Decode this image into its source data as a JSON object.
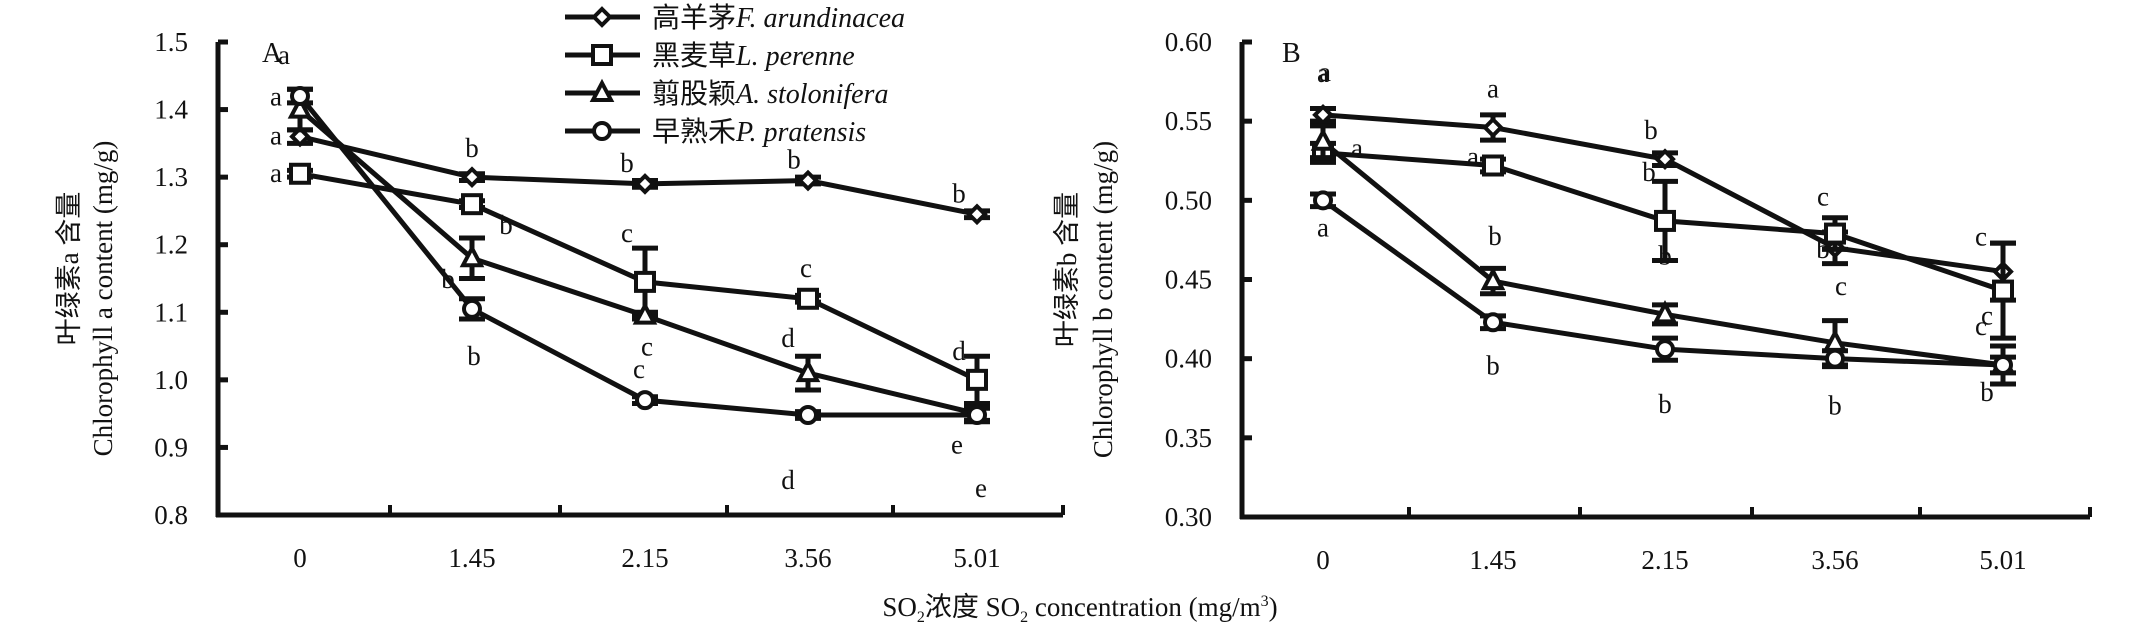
{
  "chart_data": [
    {
      "type": "line",
      "panel_label": "A",
      "title": "",
      "xlabel": "SO₂浓度 SO₂ concentration (mg/m³)",
      "ylabel_cn": "叶绿素a 含量",
      "ylabel_en": "Chlorophyll a content (mg/g)",
      "categories": [
        "0",
        "1.45",
        "2.15",
        "3.56",
        "5.01"
      ],
      "ylim": [
        0.8,
        1.5
      ],
      "yticks": [
        "0.8",
        "0.9",
        "1.0",
        "1.1",
        "1.2",
        "1.3",
        "1.4",
        "1.5"
      ],
      "grid": false,
      "series": [
        {
          "name": "高羊茅 F. arundinacea",
          "marker": "diamond",
          "values": [
            1.36,
            1.3,
            1.29,
            1.295,
            1.245
          ],
          "errors": [
            0.01,
            0.005,
            0.005,
            0.005,
            0.005
          ],
          "letters": [
            "a",
            "b",
            "b",
            "b",
            "b"
          ]
        },
        {
          "name": "黑麦草 L. perenne",
          "marker": "square",
          "values": [
            1.305,
            1.26,
            1.145,
            1.12,
            1.0
          ],
          "errors": [
            0.005,
            0.005,
            0.05,
            0.005,
            0.035
          ],
          "letters": [
            "a",
            "b",
            "c",
            "c",
            "d"
          ]
        },
        {
          "name": "翦股颖 A. stolonifera",
          "marker": "triangle",
          "values": [
            1.4,
            1.18,
            1.095,
            1.01,
            0.95
          ],
          "errors": [
            0.03,
            0.03,
            0.005,
            0.025,
            0.01
          ],
          "letters": [
            "a",
            "b",
            "c",
            "d",
            "e"
          ]
        },
        {
          "name": "早熟禾 P. pratensis",
          "marker": "circle",
          "values": [
            1.42,
            1.105,
            0.97,
            0.948,
            0.948
          ],
          "errors": [
            0.01,
            0.015,
            0.005,
            0.005,
            0.01
          ],
          "letters": [
            "a",
            "b",
            "c",
            "d",
            "e"
          ]
        }
      ]
    },
    {
      "type": "line",
      "panel_label": "B",
      "title": "",
      "xlabel": "SO₂浓度 SO₂ concentration (mg/m³)",
      "ylabel_cn": "叶绿素b 含量",
      "ylabel_en": "Chlorophyll b content (mg/g)",
      "categories": [
        "0",
        "1.45",
        "2.15",
        "3.56",
        "5.01"
      ],
      "ylim": [
        0.3,
        0.6
      ],
      "yticks": [
        "0.30",
        "0.35",
        "0.40",
        "0.45",
        "0.50",
        "0.55",
        "0.60"
      ],
      "grid": false,
      "series": [
        {
          "name": "高羊茅 F. arundinacea",
          "marker": "diamond",
          "values": [
            0.554,
            0.546,
            0.526,
            0.47,
            0.455
          ],
          "errors": [
            0.004,
            0.008,
            0.004,
            0.01,
            0.018
          ],
          "letters": [
            "a",
            "a",
            "b",
            "b",
            "c"
          ]
        },
        {
          "name": "黑麦草 L. perenne",
          "marker": "square",
          "values": [
            0.53,
            0.522,
            0.487,
            0.479,
            0.443
          ],
          "errors": [
            0.006,
            0.004,
            0.025,
            0.01,
            0.03
          ],
          "letters": [
            "a",
            "a",
            "b",
            "c",
            "c"
          ]
        },
        {
          "name": "翦股颖 A. stolonifera",
          "marker": "triangle",
          "values": [
            0.537,
            0.449,
            0.428,
            0.41,
            0.396
          ],
          "errors": [
            0.01,
            0.008,
            0.006,
            0.014,
            0.005
          ],
          "letters": [
            "a",
            "b",
            "b",
            "c",
            "c"
          ]
        },
        {
          "name": "早熟禾 P. pratensis",
          "marker": "circle",
          "values": [
            0.5,
            0.423,
            0.406,
            0.4,
            0.396
          ],
          "errors": [
            0.004,
            0.004,
            0.007,
            0.005,
            0.012
          ],
          "letters": [
            "a",
            "b",
            "b",
            "b",
            "b"
          ]
        }
      ]
    }
  ],
  "legend": {
    "placement": "top-center",
    "items": [
      {
        "marker": "diamond",
        "cn": "高羊茅",
        "latin": "F. arundinacea"
      },
      {
        "marker": "square",
        "cn": "黑麦草",
        "latin": "L. perenne"
      },
      {
        "marker": "triangle",
        "cn": "翦股颖",
        "latin": "A. stolonifera"
      },
      {
        "marker": "circle",
        "cn": "早熟禾",
        "latin": "P. pratensis"
      }
    ]
  },
  "xaxis_title": {
    "pre": "SO",
    "sub1": "2",
    "mid": "浓度 SO",
    "sub2": "2",
    "post": " concentration (mg/m",
    "sup": "3",
    "end": ")"
  }
}
